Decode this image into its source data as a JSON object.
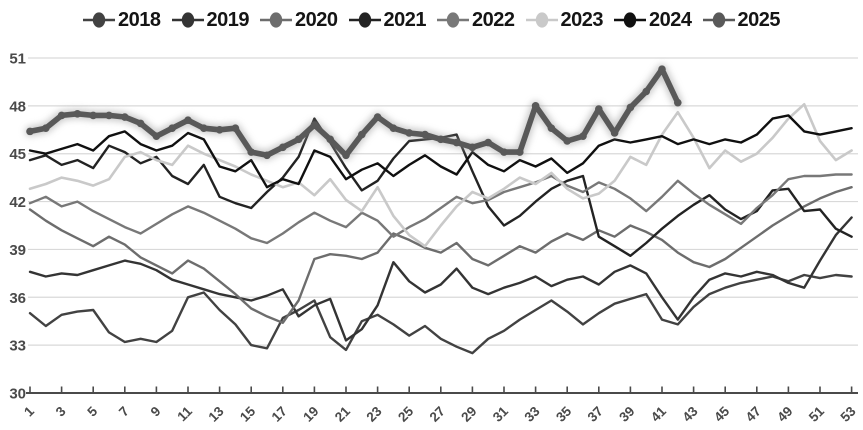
{
  "page": {
    "background": "#ffffff"
  },
  "chart_data": {
    "type": "line",
    "title": "",
    "xlabel": "",
    "ylabel": "",
    "x_unit": "week-of-year",
    "x_tick_labels": [
      "1",
      "3",
      "5",
      "7",
      "9",
      "11",
      "13",
      "15",
      "17",
      "19",
      "21",
      "23",
      "25",
      "27",
      "29",
      "31",
      "33",
      "35",
      "37",
      "39",
      "41",
      "43",
      "45",
      "47",
      "49",
      "51",
      "53"
    ],
    "x_ticks": [
      1,
      3,
      5,
      7,
      9,
      11,
      13,
      15,
      17,
      19,
      21,
      23,
      25,
      27,
      29,
      31,
      33,
      35,
      37,
      39,
      41,
      43,
      45,
      47,
      49,
      51,
      53
    ],
    "xlim": [
      1,
      53
    ],
    "y_ticks": [
      30,
      33,
      36,
      39,
      42,
      45,
      48,
      51
    ],
    "ylim": [
      30,
      51
    ],
    "grid": "horizontal",
    "gridline_color": "#d9d9d9",
    "axis_color": "#4a4a4a",
    "legend_position": "top",
    "legend_text_color": "#151515",
    "series": [
      {
        "name": "2018",
        "color": "#424242",
        "width": 2.4,
        "glow": false,
        "markers": false,
        "values": [
          35.0,
          34.2,
          34.9,
          35.1,
          35.2,
          33.8,
          33.2,
          33.4,
          33.2,
          33.9,
          36.0,
          36.3,
          35.2,
          34.3,
          33.0,
          32.8,
          34.7,
          35.2,
          35.8,
          33.5,
          32.7,
          34.5,
          34.9,
          34.3,
          33.6,
          34.2,
          33.4,
          32.9,
          32.5,
          33.4,
          33.9,
          34.6,
          35.2,
          35.8,
          35.1,
          34.3,
          35.0,
          35.6,
          35.9,
          36.2,
          34.6,
          34.3,
          35.4,
          36.2,
          36.6,
          36.9,
          37.1,
          37.3,
          37.0,
          37.4,
          37.2,
          37.4,
          37.3
        ]
      },
      {
        "name": "2019",
        "color": "#343434",
        "width": 2.4,
        "glow": false,
        "markers": false,
        "values": [
          37.6,
          37.3,
          37.5,
          37.4,
          37.7,
          38.0,
          38.3,
          38.1,
          37.7,
          37.1,
          36.8,
          36.5,
          36.2,
          36.0,
          35.8,
          36.1,
          36.5,
          34.8,
          35.5,
          35.9,
          33.3,
          34.0,
          35.5,
          38.2,
          37.0,
          36.3,
          36.8,
          37.8,
          36.6,
          36.2,
          36.6,
          36.9,
          37.3,
          36.7,
          37.1,
          37.3,
          36.8,
          37.6,
          38.0,
          37.5,
          36.0,
          34.6,
          36.0,
          37.1,
          37.5,
          37.3,
          37.6,
          37.4,
          36.9,
          36.6,
          38.3,
          39.9,
          41.0
        ]
      },
      {
        "name": "2020",
        "color": "#6d6d6d",
        "width": 2.4,
        "glow": false,
        "markers": false,
        "values": [
          41.5,
          40.8,
          40.2,
          39.7,
          39.2,
          39.8,
          39.3,
          38.5,
          38.0,
          37.5,
          38.3,
          37.8,
          37.0,
          36.2,
          35.3,
          34.8,
          34.4,
          35.8,
          38.4,
          38.7,
          38.6,
          38.4,
          38.8,
          40.0,
          39.6,
          39.1,
          38.8,
          39.4,
          38.4,
          38.0,
          38.6,
          39.2,
          38.8,
          39.5,
          40.0,
          39.6,
          40.2,
          39.8,
          40.5,
          40.1,
          39.6,
          38.8,
          38.2,
          37.9,
          38.4,
          39.1,
          39.8,
          40.5,
          41.1,
          41.7,
          42.2,
          42.6,
          42.9
        ]
      },
      {
        "name": "2021",
        "color": "#232323",
        "width": 2.4,
        "glow": false,
        "markers": false,
        "values": [
          44.6,
          44.9,
          44.3,
          44.6,
          44.1,
          45.5,
          45.1,
          44.4,
          44.8,
          43.6,
          43.1,
          44.3,
          42.3,
          41.9,
          41.6,
          42.6,
          43.5,
          44.8,
          47.2,
          45.7,
          44.1,
          42.7,
          43.3,
          44.7,
          45.8,
          45.9,
          46.0,
          46.2,
          43.9,
          41.7,
          40.5,
          41.1,
          42.0,
          42.8,
          43.3,
          43.6,
          39.8,
          39.2,
          38.6,
          39.4,
          40.3,
          41.1,
          41.8,
          42.4,
          41.5,
          40.9,
          41.4,
          42.7,
          42.8,
          41.4,
          41.5,
          40.3,
          39.8
        ]
      },
      {
        "name": "2022",
        "color": "#787878",
        "width": 2.4,
        "glow": false,
        "markers": false,
        "values": [
          41.9,
          42.3,
          41.7,
          42.0,
          41.4,
          40.9,
          40.4,
          40.0,
          40.6,
          41.2,
          41.7,
          41.3,
          40.8,
          40.3,
          39.7,
          39.4,
          40.0,
          40.7,
          41.3,
          40.8,
          40.4,
          41.3,
          40.8,
          39.8,
          40.4,
          40.9,
          41.6,
          42.3,
          41.9,
          42.1,
          42.6,
          42.9,
          43.2,
          43.6,
          43.0,
          42.6,
          43.2,
          42.8,
          42.2,
          41.4,
          42.3,
          43.3,
          42.5,
          41.8,
          41.2,
          40.6,
          41.6,
          42.4,
          43.4,
          43.6,
          43.6,
          43.7,
          43.7
        ]
      },
      {
        "name": "2023",
        "color": "#c9c9c9",
        "width": 2.6,
        "glow": false,
        "markers": false,
        "values": [
          42.8,
          43.1,
          43.5,
          43.3,
          43.0,
          43.4,
          44.8,
          45.1,
          44.6,
          44.3,
          45.5,
          45.0,
          44.6,
          44.2,
          43.7,
          43.3,
          42.9,
          43.2,
          42.4,
          43.4,
          42.1,
          41.4,
          42.9,
          41.1,
          39.9,
          39.2,
          40.5,
          41.7,
          42.6,
          42.2,
          42.8,
          43.5,
          43.1,
          43.8,
          42.8,
          42.2,
          42.5,
          43.3,
          44.8,
          44.3,
          46.2,
          47.6,
          46.0,
          44.1,
          45.2,
          44.5,
          45.0,
          46.0,
          47.2,
          48.1,
          45.8,
          44.6,
          45.2
        ]
      },
      {
        "name": "2024",
        "color": "#101010",
        "width": 2.4,
        "glow": false,
        "markers": false,
        "values": [
          45.2,
          45.0,
          45.3,
          45.6,
          45.2,
          46.1,
          46.4,
          45.6,
          45.2,
          45.5,
          46.3,
          45.9,
          44.2,
          43.9,
          44.6,
          42.9,
          43.4,
          43.1,
          45.2,
          44.8,
          43.4,
          44.0,
          44.4,
          43.6,
          44.3,
          44.9,
          44.2,
          43.7,
          45.1,
          44.3,
          43.9,
          44.6,
          44.2,
          44.7,
          43.8,
          44.4,
          45.5,
          45.9,
          45.7,
          45.9,
          46.1,
          45.6,
          45.9,
          45.6,
          45.9,
          45.7,
          46.2,
          47.2,
          47.4,
          46.4,
          46.2,
          46.4,
          46.6
        ]
      },
      {
        "name": "2025",
        "color": "#595959",
        "width": 5.6,
        "glow": true,
        "markers": true,
        "values": [
          46.4,
          46.6,
          47.4,
          47.5,
          47.4,
          47.4,
          47.3,
          46.9,
          46.1,
          46.6,
          47.1,
          46.6,
          46.5,
          46.6,
          45.1,
          44.9,
          45.4,
          45.9,
          46.8,
          45.9,
          44.9,
          46.2,
          47.3,
          46.6,
          46.3,
          46.2,
          45.9,
          45.7,
          45.4,
          45.7,
          45.1,
          45.1,
          48.0,
          46.6,
          45.8,
          46.1,
          47.8,
          46.3,
          47.9,
          48.9,
          50.3,
          48.2
        ]
      }
    ]
  }
}
